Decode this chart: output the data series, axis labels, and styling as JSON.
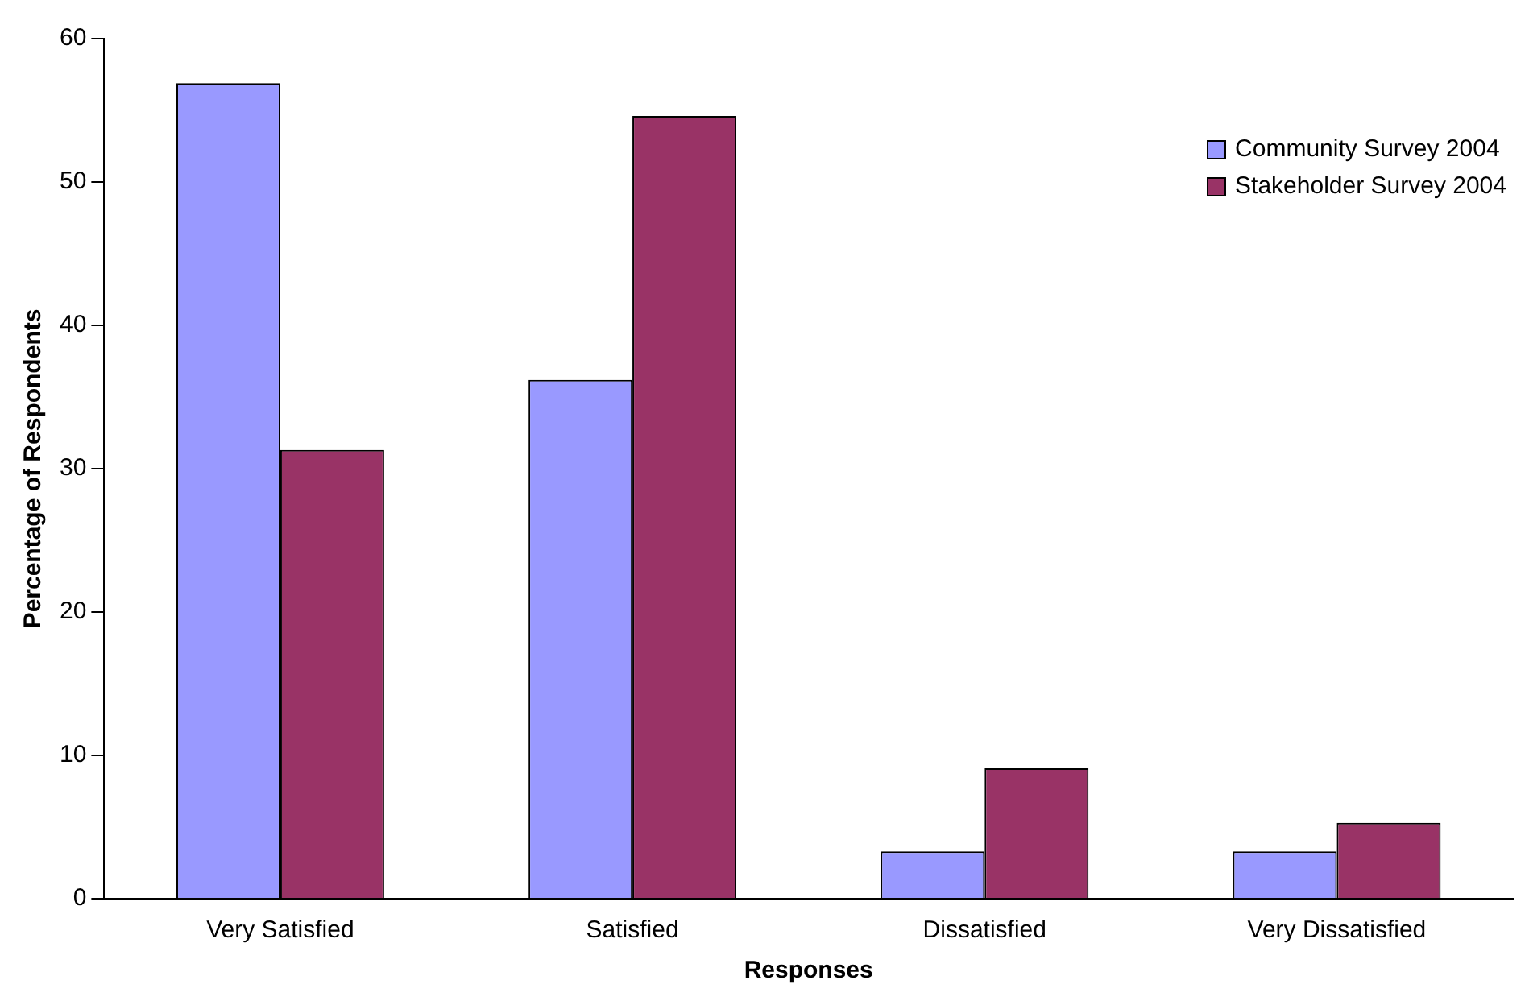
{
  "chart_data": {
    "type": "bar",
    "xlabel": "Responses",
    "ylabel": "Percentage of Respondents",
    "categories": [
      "Very Satisfied",
      "Satisfied",
      "Dissatisfied",
      "Very Dissatisfied"
    ],
    "series": [
      {
        "name": "Community Survey 2004",
        "color": "#9999ff",
        "values": [
          56.9,
          36.2,
          3.3,
          3.3
        ]
      },
      {
        "name": "Stakeholder Survey 2004",
        "color": "#993366",
        "values": [
          31.3,
          54.6,
          9.1,
          5.3
        ]
      }
    ],
    "ylim": [
      0,
      60
    ],
    "yticks": [
      0,
      10,
      20,
      30,
      40,
      50,
      60
    ],
    "grid": false,
    "legend": "top right"
  }
}
